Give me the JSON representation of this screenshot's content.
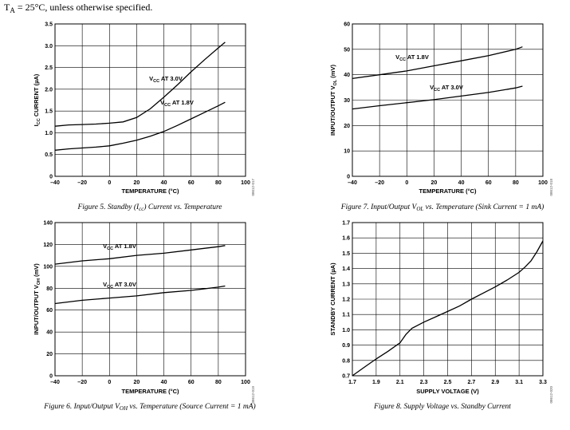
{
  "header": {
    "condition_main": "T",
    "condition_sub": "A",
    "condition_rest": " = 25°C, unless otherwise specified."
  },
  "chart_data": [
    {
      "id": "fig5",
      "type": "line",
      "caption": "Figure 5. Standby (Icc) Current vs. Temperature",
      "code": "08612-017",
      "xlabel": "TEMPERATURE (°C)",
      "ylabel": "ICC CURRENT (µA)",
      "ylabel_parts": [
        "I",
        "CC",
        " CURRENT (µA)"
      ],
      "xlim": [
        -40,
        100
      ],
      "ylim": [
        0,
        3.5
      ],
      "xticks": [
        -40,
        -20,
        0,
        20,
        40,
        60,
        80,
        100
      ],
      "yticks": [
        0,
        0.5,
        1.0,
        1.5,
        2.0,
        2.5,
        3.0,
        3.5
      ],
      "xtick_labels": [
        "–40",
        "–20",
        "0",
        "20",
        "40",
        "60",
        "80",
        "100"
      ],
      "ytick_labels": [
        "0",
        "0.5",
        "1.0",
        "1.5",
        "2.0",
        "2.5",
        "3.0",
        "3.5"
      ],
      "grid": true,
      "series": [
        {
          "name": "VCC AT 3.0V",
          "label_parts": [
            "V",
            "CC",
            " AT 3.0V"
          ],
          "x": [
            -40,
            -30,
            -20,
            -10,
            0,
            10,
            20,
            30,
            40,
            50,
            60,
            70,
            80,
            85
          ],
          "y": [
            1.15,
            1.18,
            1.19,
            1.2,
            1.22,
            1.25,
            1.35,
            1.55,
            1.82,
            2.1,
            2.4,
            2.68,
            2.95,
            3.08
          ]
        },
        {
          "name": "VCC AT 1.8V",
          "label_parts": [
            "V",
            "CC",
            " AT 1.8V"
          ],
          "x": [
            -40,
            -30,
            -20,
            -10,
            0,
            10,
            20,
            30,
            40,
            50,
            60,
            70,
            80,
            85
          ],
          "y": [
            0.6,
            0.63,
            0.65,
            0.67,
            0.7,
            0.76,
            0.83,
            0.92,
            1.03,
            1.17,
            1.32,
            1.47,
            1.62,
            1.7
          ]
        }
      ]
    },
    {
      "id": "fig6",
      "type": "line",
      "caption": "Figure 6. Input/Output VOH vs. Temperature (Source Current = 1 mA)",
      "code": "08612-019",
      "xlabel": "TEMPERATURE (°C)",
      "ylabel": "INPUT/OUTPUT VOH (mV)",
      "ylabel_parts": [
        "INPUT/OUTPUT V",
        "OH",
        " (mV)"
      ],
      "xlim": [
        -40,
        100
      ],
      "ylim": [
        0,
        140
      ],
      "xticks": [
        -40,
        -20,
        0,
        20,
        40,
        60,
        80,
        100
      ],
      "yticks": [
        0,
        20,
        40,
        60,
        80,
        100,
        120,
        140
      ],
      "xtick_labels": [
        "–40",
        "–20",
        "0",
        "20",
        "40",
        "60",
        "80",
        "100"
      ],
      "ytick_labels": [
        "0",
        "20",
        "40",
        "60",
        "80",
        "100",
        "120",
        "140"
      ],
      "grid": true,
      "series": [
        {
          "name": "VCC AT 1.8V",
          "label_parts": [
            "V",
            "CC",
            " AT 1.8V"
          ],
          "x": [
            -40,
            -20,
            0,
            20,
            40,
            60,
            80,
            85
          ],
          "y": [
            102,
            105,
            107,
            110,
            112,
            115,
            118,
            119
          ]
        },
        {
          "name": "VCC AT 3.0V",
          "label_parts": [
            "V",
            "CC",
            " AT 3.0V"
          ],
          "x": [
            -40,
            -20,
            0,
            20,
            40,
            60,
            80,
            85
          ],
          "y": [
            66,
            69,
            71,
            73,
            76,
            78,
            81,
            82
          ]
        }
      ]
    },
    {
      "id": "fig7",
      "type": "line",
      "caption": "Figure 7. Input/Output VOL vs. Temperature (Sink Current = 1 mA)",
      "code": "08612-018",
      "xlabel": "TEMPERATURE (°C)",
      "ylabel": "INPUT/OUTPUT VOL (mV)",
      "ylabel_parts": [
        "INPUT/OUTPUT V",
        "OL",
        " (mV)"
      ],
      "xlim": [
        -40,
        100
      ],
      "ylim": [
        0,
        60
      ],
      "xticks": [
        -40,
        -20,
        0,
        20,
        40,
        60,
        80,
        100
      ],
      "yticks": [
        0,
        10,
        20,
        30,
        40,
        50,
        60
      ],
      "xtick_labels": [
        "–40",
        "–20",
        "0",
        "20",
        "40",
        "60",
        "80",
        "100"
      ],
      "ytick_labels": [
        "0",
        "10",
        "20",
        "30",
        "40",
        "50",
        "60"
      ],
      "grid": true,
      "series": [
        {
          "name": "VCC AT 1.8V",
          "label_parts": [
            "V",
            "CC",
            " AT 1.8V"
          ],
          "x": [
            -40,
            -20,
            0,
            20,
            40,
            60,
            80,
            85
          ],
          "y": [
            38.5,
            40,
            41.5,
            43.5,
            45.5,
            47.5,
            50,
            51
          ]
        },
        {
          "name": "VCC AT 3.0V",
          "label_parts": [
            "V",
            "CC",
            " AT 3.0V"
          ],
          "x": [
            -40,
            -20,
            0,
            20,
            40,
            60,
            80,
            85
          ],
          "y": [
            26.5,
            27.8,
            29,
            30.2,
            31.6,
            33,
            34.8,
            35.5
          ]
        }
      ]
    },
    {
      "id": "fig8",
      "type": "line",
      "caption": "Figure 8. Supply Voltage vs. Standby Current",
      "code": "08612-020",
      "xlabel": "SUPPLY VOLTAGE (V)",
      "ylabel": "STANDBY CURRENT (µA)",
      "ylabel_parts": [
        "STANDBY CURRENT (µA)"
      ],
      "xlim": [
        1.7,
        3.3
      ],
      "ylim": [
        0.7,
        1.7
      ],
      "xticks": [
        1.7,
        1.9,
        2.1,
        2.3,
        2.5,
        2.7,
        2.9,
        3.1,
        3.3
      ],
      "yticks": [
        0.7,
        0.8,
        0.9,
        1.0,
        1.1,
        1.2,
        1.3,
        1.4,
        1.5,
        1.6,
        1.7
      ],
      "xtick_labels": [
        "1.7",
        "1.9",
        "2.1",
        "2.3",
        "2.5",
        "2.7",
        "2.9",
        "3.1",
        "3.3"
      ],
      "ytick_labels": [
        "0.7",
        "0.8",
        "0.9",
        "1.0",
        "1.1",
        "1.2",
        "1.3",
        "1.4",
        "1.5",
        "1.6",
        "1.7"
      ],
      "grid": true,
      "series": [
        {
          "name": "standby current",
          "x": [
            1.7,
            1.8,
            1.9,
            2.0,
            2.1,
            2.15,
            2.2,
            2.3,
            2.4,
            2.5,
            2.6,
            2.7,
            2.8,
            2.9,
            3.0,
            3.1,
            3.15,
            3.2,
            3.25,
            3.3
          ],
          "y": [
            0.7,
            0.755,
            0.81,
            0.86,
            0.915,
            0.97,
            1.01,
            1.05,
            1.085,
            1.12,
            1.155,
            1.2,
            1.24,
            1.28,
            1.325,
            1.375,
            1.41,
            1.45,
            1.51,
            1.58
          ]
        }
      ]
    }
  ]
}
